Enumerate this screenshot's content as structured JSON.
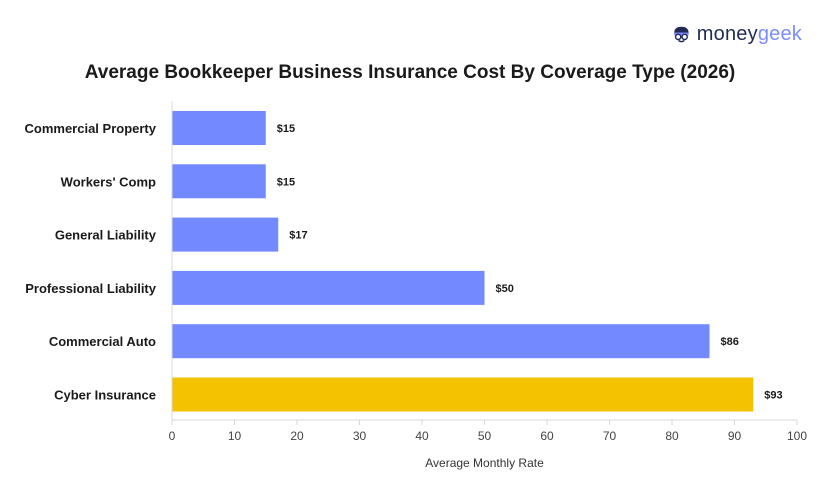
{
  "brand": {
    "part1": "money",
    "part2": "geek"
  },
  "colors": {
    "bar": "#7389ff",
    "highlight": "#f5c200",
    "axis": "#d9d9d9"
  },
  "chart_data": {
    "type": "bar",
    "orientation": "horizontal",
    "title": "Average Bookkeeper Business Insurance Cost By Coverage Type (2026)",
    "xlabel": "Average Monthly Rate",
    "ylabel": "",
    "categories": [
      "Commercial Property",
      "Workers' Comp",
      "General Liability",
      "Professional Liability",
      "Commercial Auto",
      "Cyber Insurance"
    ],
    "values": [
      15,
      15,
      17,
      50,
      86,
      93
    ],
    "data_labels": [
      "$15",
      "$15",
      "$17",
      "$50",
      "$86",
      "$93"
    ],
    "highlight_category": "Cyber Insurance",
    "xlim": [
      0,
      100
    ],
    "xticks": [
      0,
      10,
      20,
      30,
      40,
      50,
      60,
      70,
      80,
      90,
      100
    ],
    "grid": false,
    "legend": "none"
  }
}
